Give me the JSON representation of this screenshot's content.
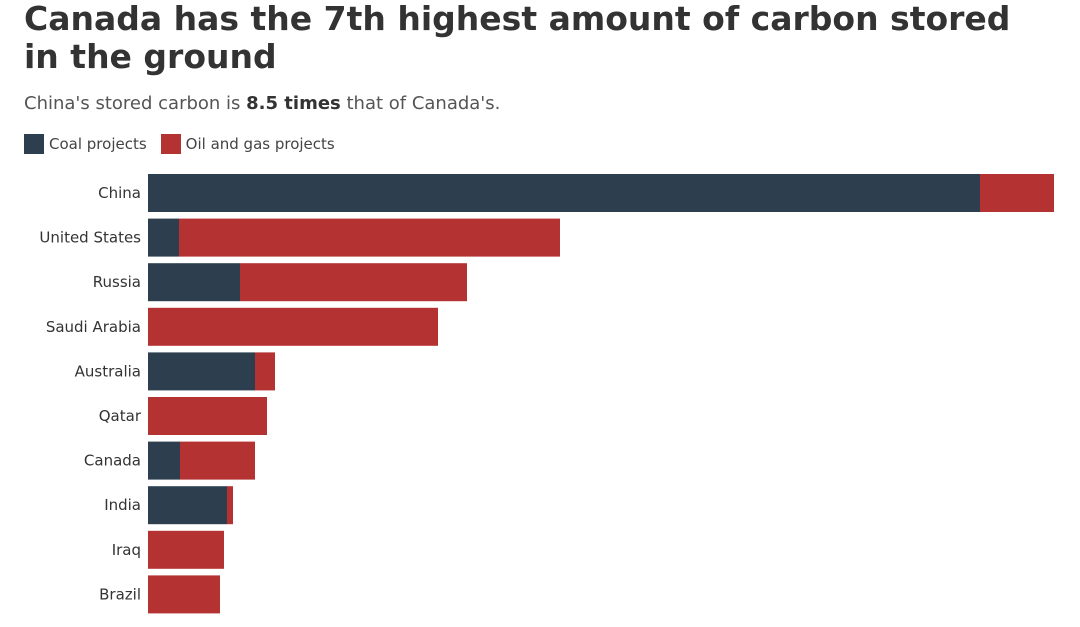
{
  "chart_data": {
    "type": "bar",
    "orientation": "horizontal",
    "stacked": true,
    "title": "Canada has the 7th highest amount of carbon stored in the ground",
    "subtitle": {
      "prefix": "China's stored carbon is ",
      "bold": "8.5 times",
      "suffix": " that of Canada's."
    },
    "categories": [
      "China",
      "United States",
      "Russia",
      "Saudi Arabia",
      "Australia",
      "Qatar",
      "Canada",
      "India",
      "Iraq",
      "Brazil"
    ],
    "series": [
      {
        "name": "Coal projects",
        "color": "#2d3f4f",
        "values": [
          832,
          31,
          92,
          0,
          107,
          0,
          32,
          79,
          0,
          0
        ]
      },
      {
        "name": "Oil and gas projects",
        "color": "#b53232",
        "values": [
          74,
          381,
          227,
          290,
          20,
          119,
          75,
          6,
          76,
          72
        ]
      }
    ],
    "xlim": [
      0,
      906
    ],
    "grid": false,
    "legend": "top-left"
  }
}
